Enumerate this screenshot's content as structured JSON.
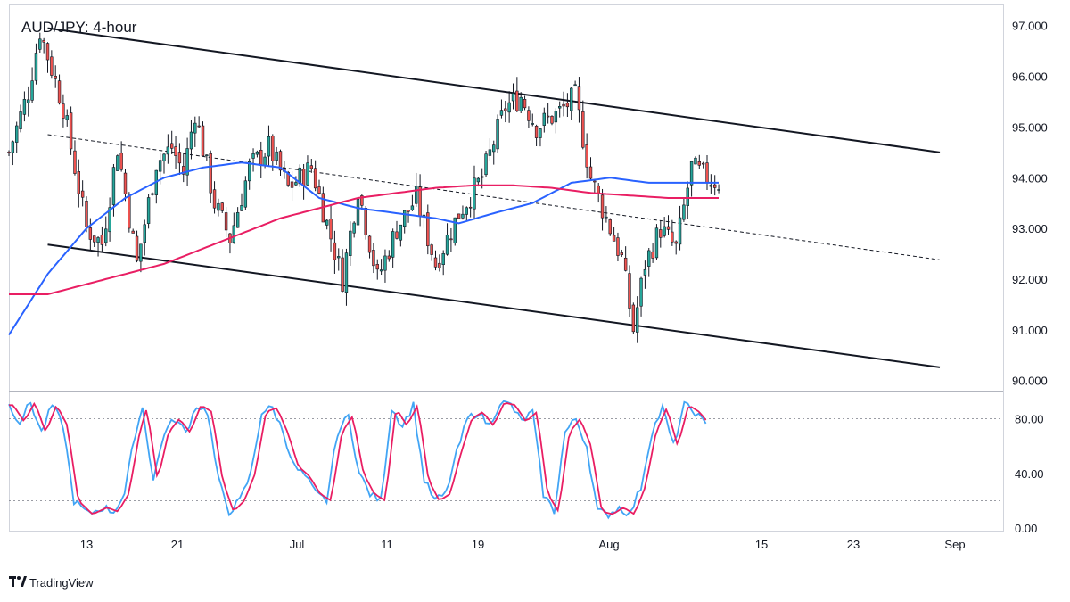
{
  "chart_data": {
    "type": "candlestick",
    "title": "AUD/JPY: 4-hour",
    "brand": "TradingView",
    "x_ticks": [
      "13",
      "21",
      "Jul",
      "11",
      "19",
      "Aug",
      "15",
      "23",
      "Sep"
    ],
    "price_axis": {
      "ticks": [
        "97.000",
        "96.000",
        "95.000",
        "94.000",
        "93.000",
        "92.000",
        "91.000",
        "90.000"
      ],
      "range": [
        89.8,
        97.4
      ]
    },
    "oscillator_axis": {
      "ticks": [
        "80.00",
        "40.00",
        "0.00"
      ],
      "range": [
        -2,
        100
      ],
      "levels": [
        80,
        20
      ]
    },
    "price_path": [
      [
        0,
        94.5
      ],
      [
        5,
        95.7
      ],
      [
        8,
        96.9
      ],
      [
        14,
        95.4
      ],
      [
        20,
        93.0
      ],
      [
        24,
        92.7
      ],
      [
        28,
        94.6
      ],
      [
        33,
        92.3
      ],
      [
        38,
        94.3
      ],
      [
        42,
        94.6
      ],
      [
        45,
        94.1
      ],
      [
        48,
        95.3
      ],
      [
        53,
        93.5
      ],
      [
        57,
        92.8
      ],
      [
        62,
        94.2
      ],
      [
        67,
        94.6
      ],
      [
        72,
        93.8
      ],
      [
        78,
        94.2
      ],
      [
        86,
        92.0
      ],
      [
        90,
        93.8
      ],
      [
        95,
        92.0
      ],
      [
        100,
        93.0
      ],
      [
        105,
        93.6
      ],
      [
        110,
        92.3
      ],
      [
        116,
        93.3
      ],
      [
        122,
        94.0
      ],
      [
        128,
        95.4
      ],
      [
        132,
        95.6
      ],
      [
        136,
        95.0
      ],
      [
        142,
        95.3
      ],
      [
        146,
        95.6
      ],
      [
        150,
        94.0
      ],
      [
        154,
        93.2
      ],
      [
        158,
        92.4
      ],
      [
        161,
        91.0
      ],
      [
        164,
        92.3
      ],
      [
        168,
        93.0
      ],
      [
        172,
        92.6
      ],
      [
        176,
        94.2
      ],
      [
        180,
        94.0
      ],
      [
        183,
        93.9
      ]
    ],
    "series": [
      {
        "name": "",
        "color": "#2962ff",
        "points": [
          [
            0,
            90.9
          ],
          [
            10,
            92.1
          ],
          [
            20,
            93.0
          ],
          [
            30,
            93.6
          ],
          [
            40,
            94.0
          ],
          [
            50,
            94.2
          ],
          [
            60,
            94.3
          ],
          [
            70,
            94.2
          ],
          [
            80,
            93.6
          ],
          [
            90,
            93.4
          ],
          [
            100,
            93.3
          ],
          [
            110,
            93.2
          ],
          [
            116,
            93.1
          ],
          [
            125,
            93.3
          ],
          [
            135,
            93.5
          ],
          [
            145,
            93.9
          ],
          [
            155,
            94.0
          ],
          [
            165,
            93.9
          ],
          [
            175,
            93.9
          ],
          [
            183,
            93.9
          ]
        ]
      },
      {
        "name": "",
        "color": "#e91e63",
        "points": [
          [
            0,
            91.7
          ],
          [
            10,
            91.7
          ],
          [
            20,
            91.9
          ],
          [
            30,
            92.1
          ],
          [
            40,
            92.3
          ],
          [
            50,
            92.6
          ],
          [
            60,
            92.9
          ],
          [
            70,
            93.2
          ],
          [
            80,
            93.4
          ],
          [
            90,
            93.6
          ],
          [
            100,
            93.7
          ],
          [
            110,
            93.8
          ],
          [
            120,
            93.85
          ],
          [
            130,
            93.85
          ],
          [
            140,
            93.8
          ],
          [
            150,
            93.7
          ],
          [
            160,
            93.65
          ],
          [
            170,
            93.6
          ],
          [
            183,
            93.6
          ]
        ]
      }
    ],
    "trendlines": [
      {
        "style": "solid",
        "from": [
          10,
          96.95
        ],
        "to": [
          240,
          94.5
        ]
      },
      {
        "style": "solid",
        "from": [
          10,
          92.68
        ],
        "to": [
          240,
          90.26
        ]
      },
      {
        "style": "dashed",
        "from": [
          10,
          94.85
        ],
        "to": [
          240,
          92.38
        ]
      }
    ],
    "oscillator_path": [
      [
        0,
        90
      ],
      [
        3,
        78
      ],
      [
        6,
        92
      ],
      [
        9,
        70
      ],
      [
        12,
        90
      ],
      [
        15,
        75
      ],
      [
        18,
        20
      ],
      [
        22,
        10
      ],
      [
        26,
        15
      ],
      [
        29,
        12
      ],
      [
        32,
        25
      ],
      [
        35,
        70
      ],
      [
        37,
        88
      ],
      [
        40,
        35
      ],
      [
        43,
        70
      ],
      [
        46,
        80
      ],
      [
        49,
        70
      ],
      [
        52,
        90
      ],
      [
        55,
        85
      ],
      [
        58,
        35
      ],
      [
        61,
        12
      ],
      [
        64,
        20
      ],
      [
        67,
        40
      ],
      [
        70,
        85
      ],
      [
        73,
        88
      ],
      [
        76,
        70
      ],
      [
        79,
        45
      ],
      [
        82,
        38
      ],
      [
        85,
        25
      ],
      [
        88,
        20
      ],
      [
        91,
        70
      ],
      [
        94,
        82
      ],
      [
        97,
        40
      ],
      [
        100,
        25
      ],
      [
        103,
        20
      ],
      [
        106,
        88
      ],
      [
        109,
        75
      ],
      [
        112,
        90
      ],
      [
        115,
        35
      ],
      [
        118,
        20
      ],
      [
        121,
        25
      ],
      [
        124,
        55
      ],
      [
        127,
        80
      ],
      [
        130,
        85
      ],
      [
        133,
        75
      ],
      [
        136,
        92
      ],
      [
        139,
        90
      ],
      [
        142,
        78
      ],
      [
        145,
        85
      ],
      [
        148,
        25
      ],
      [
        151,
        12
      ],
      [
        154,
        70
      ],
      [
        157,
        80
      ],
      [
        160,
        60
      ],
      [
        163,
        12
      ],
      [
        166,
        10
      ],
      [
        169,
        15
      ],
      [
        172,
        10
      ],
      [
        175,
        30
      ],
      [
        178,
        70
      ],
      [
        181,
        88
      ],
      [
        184,
        60
      ],
      [
        187,
        90
      ],
      [
        190,
        85
      ],
      [
        193,
        75
      ]
    ],
    "oscillator_k_color": "#42a5f5",
    "oscillator_d_color": "#e91e63",
    "candle_up_color": "#26a69a",
    "candle_down_color": "#ef5350"
  }
}
